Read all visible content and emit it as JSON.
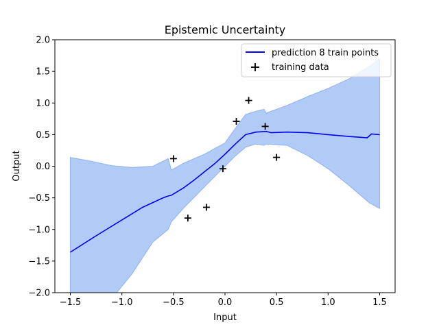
{
  "chart_data": {
    "type": "line",
    "title": "Epistemic Uncertainty",
    "xlabel": "Input",
    "ylabel": "Output",
    "xlim": [
      -1.65,
      1.65
    ],
    "ylim": [
      -2.0,
      2.0
    ],
    "xticks": [
      -1.5,
      -1.0,
      -0.5,
      0.0,
      0.5,
      1.0,
      1.5
    ],
    "xtick_labels": [
      "−1.5",
      "−1.0",
      "−0.5",
      "0.0",
      "0.5",
      "1.0",
      "1.5"
    ],
    "yticks": [
      -2.0,
      -1.5,
      -1.0,
      -0.5,
      0.0,
      0.5,
      1.0,
      1.5,
      2.0
    ],
    "ytick_labels": [
      "−2.0",
      "−1.5",
      "−1.0",
      "−0.5",
      "0.0",
      "0.5",
      "1.0",
      "1.5",
      "2.0"
    ],
    "grid": false,
    "legend": {
      "placement": "top-right",
      "entries": [
        "prediction 8 train points",
        "training data"
      ]
    },
    "series": [
      {
        "name": "prediction 8 train points",
        "color": "#0000ee",
        "x": [
          -1.5,
          -1.25,
          -1.0,
          -0.8,
          -0.6,
          -0.55,
          -0.52,
          -0.4,
          -0.3,
          -0.2,
          -0.1,
          0.0,
          0.1,
          0.2,
          0.3,
          0.4,
          0.45,
          0.6,
          0.8,
          1.0,
          1.2,
          1.38,
          1.42,
          1.5
        ],
        "y": [
          -1.36,
          -1.1,
          -0.85,
          -0.65,
          -0.5,
          -0.47,
          -0.46,
          -0.34,
          -0.22,
          -0.09,
          0.04,
          0.19,
          0.35,
          0.5,
          0.54,
          0.55,
          0.53,
          0.54,
          0.53,
          0.5,
          0.47,
          0.45,
          0.51,
          0.5
        ]
      }
    ],
    "band": {
      "color": "#6495ed",
      "x": [
        -1.5,
        -1.3,
        -1.1,
        -0.9,
        -0.7,
        -0.55,
        -0.52,
        -0.4,
        -0.2,
        0.0,
        0.1,
        0.2,
        0.3,
        0.38,
        0.4,
        0.6,
        0.8,
        1.0,
        1.2,
        1.4,
        1.5
      ],
      "upper": [
        0.14,
        0.08,
        0.01,
        -0.02,
        0.0,
        0.12,
        -0.06,
        0.05,
        0.19,
        0.37,
        0.6,
        0.82,
        0.87,
        0.9,
        0.84,
        0.96,
        1.1,
        1.23,
        1.38,
        1.58,
        1.7
      ],
      "lower": [
        -2.1,
        -2.1,
        -2.1,
        -1.7,
        -1.2,
        -1.0,
        -0.88,
        -0.66,
        -0.33,
        0.0,
        0.16,
        0.3,
        0.35,
        0.33,
        0.35,
        0.33,
        0.17,
        -0.04,
        -0.3,
        -0.58,
        -0.67
      ]
    },
    "training_data": {
      "name": "training data",
      "x": [
        -0.5,
        -0.36,
        -0.18,
        -0.02,
        0.11,
        0.23,
        0.39,
        0.5
      ],
      "y": [
        0.12,
        -0.82,
        -0.65,
        -0.04,
        0.71,
        1.04,
        0.63,
        0.14
      ]
    }
  }
}
